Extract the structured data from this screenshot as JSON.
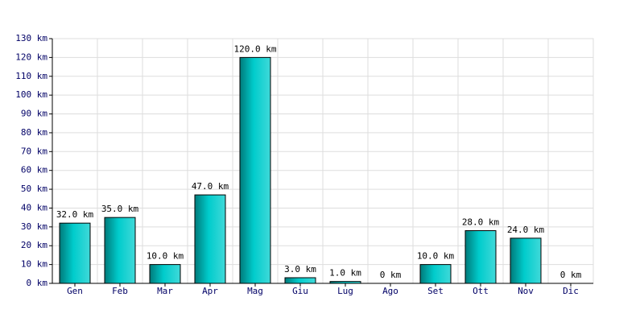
{
  "chart_data": {
    "type": "bar",
    "categories": [
      "Gen",
      "Feb",
      "Mar",
      "Apr",
      "Mag",
      "Giu",
      "Lug",
      "Ago",
      "Set",
      "Ott",
      "Nov",
      "Dic"
    ],
    "values": [
      32,
      35,
      10,
      47,
      120,
      3,
      1,
      0,
      10,
      28,
      24,
      0
    ],
    "value_labels": [
      "32.0 km",
      "35.0 km",
      "10.0 km",
      "47.0 km",
      "120.0 km",
      "3.0 km",
      "1.0 km",
      "0 km",
      "10.0 km",
      "28.0 km",
      "24.0 km",
      "0 km"
    ],
    "color": "#00cccc",
    "ylim": [
      0,
      130
    ],
    "yticks": [
      {
        "value": 0,
        "label": "0 km"
      },
      {
        "value": 10,
        "label": "10 km"
      },
      {
        "value": 20,
        "label": "20 km"
      },
      {
        "value": 30,
        "label": "30 km"
      },
      {
        "value": 40,
        "label": "40 km"
      },
      {
        "value": 50,
        "label": "50 km"
      },
      {
        "value": 60,
        "label": "60 km"
      },
      {
        "value": 70,
        "label": "70 km"
      },
      {
        "value": 80,
        "label": "80 km"
      },
      {
        "value": 90,
        "label": "90 km"
      },
      {
        "value": 100,
        "label": "100 km"
      },
      {
        "value": 110,
        "label": "110 km"
      },
      {
        "value": 120,
        "label": "120 km"
      },
      {
        "value": 130,
        "label": "130 km"
      }
    ],
    "grid": true
  }
}
